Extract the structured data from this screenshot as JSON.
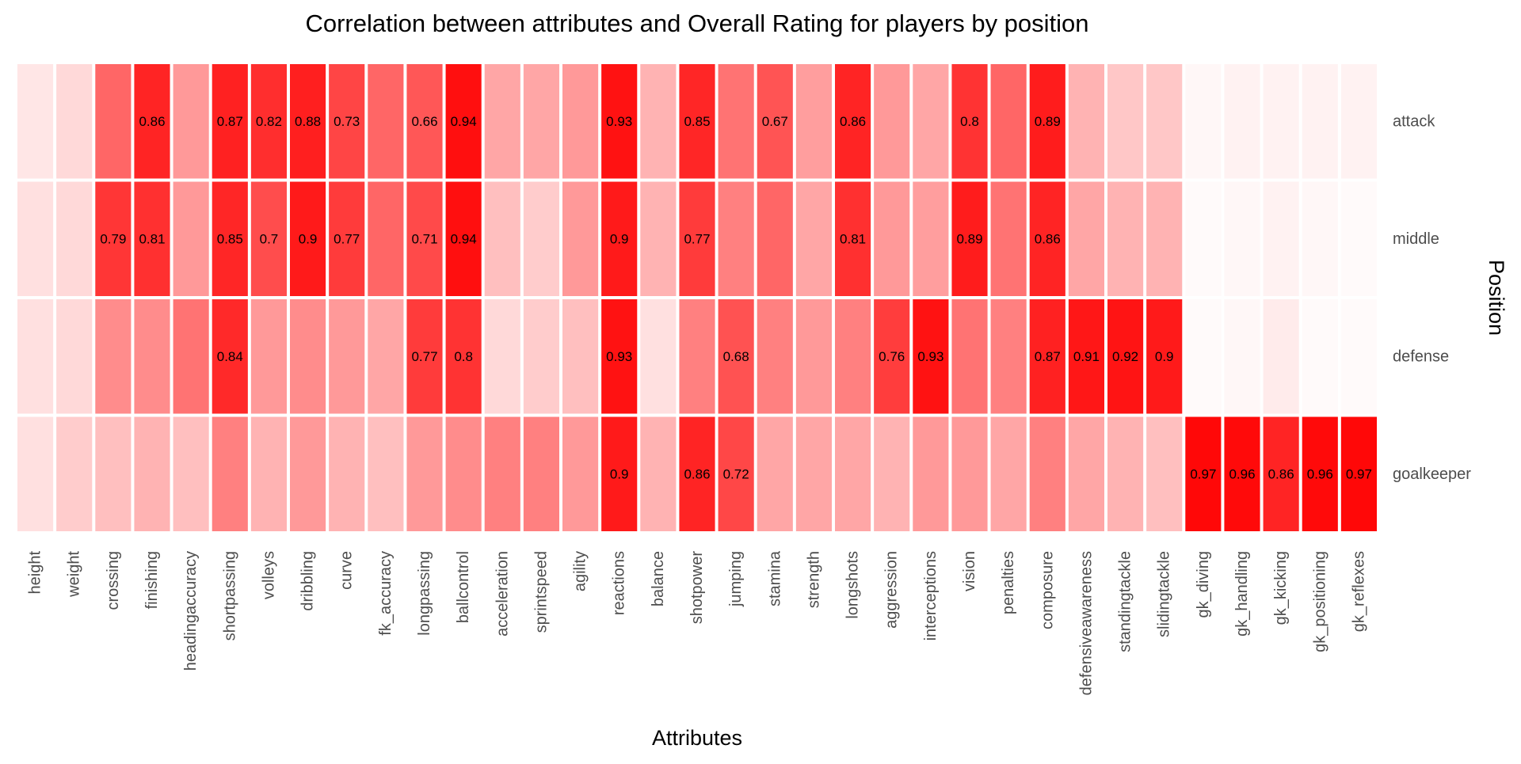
{
  "chart_data": {
    "type": "heatmap",
    "title": "Correlation between attributes and Overall Rating for players by position",
    "xlabel": "Attributes",
    "ylabel": "Position",
    "color_low": "#ffffff",
    "color_high": "#ff0000",
    "value_range": [
      0,
      1
    ],
    "x": [
      "height",
      "weight",
      "crossing",
      "finishing",
      "headingaccuracy",
      "shortpassing",
      "volleys",
      "dribbling",
      "curve",
      "fk_accuracy",
      "longpassing",
      "ballcontrol",
      "acceleration",
      "sprintspeed",
      "agility",
      "reactions",
      "balance",
      "shotpower",
      "jumping",
      "stamina",
      "strength",
      "longshots",
      "aggression",
      "interceptions",
      "vision",
      "penalties",
      "composure",
      "defensiveawareness",
      "standingtackle",
      "slidingtackle",
      "gk_diving",
      "gk_handling",
      "gk_kicking",
      "gk_positioning",
      "gk_reflexes"
    ],
    "y": [
      "attack",
      "middle",
      "defense",
      "goalkeeper"
    ],
    "values": [
      [
        0.1,
        0.15,
        0.6,
        0.86,
        0.4,
        0.87,
        0.82,
        0.88,
        0.73,
        0.6,
        0.66,
        0.94,
        0.35,
        0.35,
        0.4,
        0.93,
        0.3,
        0.85,
        0.55,
        0.67,
        0.38,
        0.86,
        0.4,
        0.35,
        0.8,
        0.6,
        0.89,
        0.3,
        0.22,
        0.22,
        0.03,
        0.05,
        0.05,
        0.05,
        0.05
      ],
      [
        0.12,
        0.15,
        0.79,
        0.81,
        0.4,
        0.85,
        0.7,
        0.9,
        0.77,
        0.6,
        0.71,
        0.94,
        0.25,
        0.2,
        0.4,
        0.9,
        0.3,
        0.77,
        0.5,
        0.6,
        0.35,
        0.81,
        0.4,
        0.38,
        0.89,
        0.55,
        0.86,
        0.35,
        0.3,
        0.3,
        0.02,
        0.03,
        0.05,
        0.03,
        0.02
      ],
      [
        0.12,
        0.15,
        0.45,
        0.45,
        0.55,
        0.84,
        0.4,
        0.45,
        0.4,
        0.35,
        0.77,
        0.8,
        0.15,
        0.2,
        0.25,
        0.93,
        0.12,
        0.5,
        0.68,
        0.5,
        0.4,
        0.5,
        0.76,
        0.93,
        0.55,
        0.5,
        0.87,
        0.91,
        0.92,
        0.9,
        0.02,
        0.03,
        0.08,
        0.02,
        0.02
      ],
      [
        0.12,
        0.2,
        0.25,
        0.3,
        0.25,
        0.5,
        0.3,
        0.4,
        0.3,
        0.25,
        0.4,
        0.45,
        0.5,
        0.5,
        0.4,
        0.9,
        0.3,
        0.86,
        0.72,
        0.35,
        0.35,
        0.35,
        0.3,
        0.4,
        0.4,
        0.35,
        0.5,
        0.35,
        0.3,
        0.25,
        0.97,
        0.96,
        0.86,
        0.96,
        0.97
      ]
    ],
    "labels": [
      [
        null,
        null,
        null,
        "0.86",
        null,
        "0.87",
        "0.82",
        "0.88",
        "0.73",
        null,
        "0.66",
        "0.94",
        null,
        null,
        null,
        "0.93",
        null,
        "0.85",
        null,
        "0.67",
        null,
        "0.86",
        null,
        null,
        "0.8",
        null,
        "0.89",
        null,
        null,
        null,
        null,
        null,
        null,
        null,
        null
      ],
      [
        null,
        null,
        "0.79",
        "0.81",
        null,
        "0.85",
        "0.7",
        "0.9",
        "0.77",
        null,
        "0.71",
        "0.94",
        null,
        null,
        null,
        "0.9",
        null,
        "0.77",
        null,
        null,
        null,
        "0.81",
        null,
        null,
        "0.89",
        null,
        "0.86",
        null,
        null,
        null,
        null,
        null,
        null,
        null,
        null
      ],
      [
        null,
        null,
        null,
        null,
        null,
        "0.84",
        null,
        null,
        null,
        null,
        "0.77",
        "0.8",
        null,
        null,
        null,
        "0.93",
        null,
        null,
        "0.68",
        null,
        null,
        null,
        "0.76",
        "0.93",
        null,
        null,
        "0.87",
        "0.91",
        "0.92",
        "0.9",
        null,
        null,
        null,
        null,
        null
      ],
      [
        null,
        null,
        null,
        null,
        null,
        null,
        null,
        null,
        null,
        null,
        null,
        null,
        null,
        null,
        null,
        "0.9",
        null,
        "0.86",
        "0.72",
        null,
        null,
        null,
        null,
        null,
        null,
        null,
        null,
        null,
        null,
        null,
        "0.97",
        "0.96",
        "0.86",
        "0.96",
        "0.97"
      ]
    ],
    "grid": false,
    "legend": "none"
  }
}
